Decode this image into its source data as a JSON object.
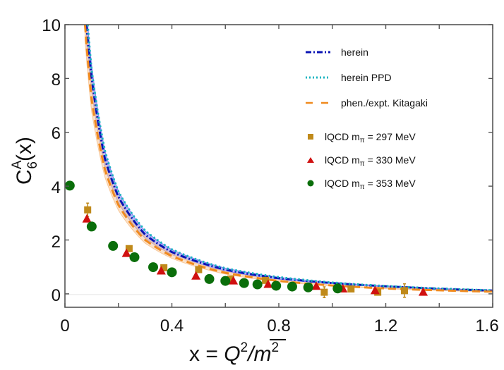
{
  "chart_data": {
    "type": "line",
    "title": "",
    "xlabel": "x = Q^2/m̄^2",
    "ylabel": "C_6^A(x)",
    "xlim": [
      0,
      1.6
    ],
    "ylim": [
      -0.5,
      10
    ],
    "xticks": [
      "0",
      "0.4",
      "0.8",
      "1.2",
      "1.6"
    ],
    "yticks": [
      "0",
      "2",
      "4",
      "6",
      "8",
      "10"
    ],
    "grid": false,
    "legend_position": "upper right",
    "series": [
      {
        "name": "herein",
        "kind": "line",
        "style": "dash-dot",
        "color": "#0a14b4",
        "band_color": "#7c7cf0",
        "formula_hint": "≈0.78/x decaying",
        "x": [
          0.08,
          0.1,
          0.15,
          0.2,
          0.3,
          0.4,
          0.6,
          0.8,
          1.0,
          1.2,
          1.4,
          1.6
        ],
        "y": [
          10.0,
          8.0,
          5.0,
          3.6,
          2.2,
          1.55,
          0.9,
          0.58,
          0.4,
          0.28,
          0.19,
          0.12
        ]
      },
      {
        "name": "herein PPD",
        "kind": "line",
        "style": "dotted",
        "color": "#18b4c0",
        "x": [
          0.085,
          0.1,
          0.15,
          0.2,
          0.3,
          0.4,
          0.6,
          0.8,
          1.0,
          1.2,
          1.4,
          1.6
        ],
        "y": [
          10.0,
          8.3,
          5.3,
          3.8,
          2.35,
          1.65,
          0.95,
          0.62,
          0.42,
          0.29,
          0.2,
          0.13
        ]
      },
      {
        "name": "phen./expt. Kitagaki",
        "kind": "line",
        "style": "dashed",
        "color": "#f08a1e",
        "band_color": "#f8c89a",
        "x": [
          0.075,
          0.1,
          0.15,
          0.2,
          0.3,
          0.4,
          0.6,
          0.8,
          1.0,
          1.2,
          1.4,
          1.6
        ],
        "y": [
          10.0,
          7.2,
          4.6,
          3.3,
          2.0,
          1.4,
          0.78,
          0.48,
          0.31,
          0.2,
          0.13,
          0.08
        ]
      },
      {
        "name": "lQCD m_π = 297 MeV",
        "kind": "scatter",
        "marker": "square",
        "color": "#c08a1a",
        "x": [
          0.085,
          0.24,
          0.37,
          0.5,
          0.62,
          0.75,
          0.97,
          1.07,
          1.17,
          1.27
        ],
        "y": [
          3.12,
          1.68,
          0.97,
          0.9,
          0.55,
          0.5,
          0.06,
          0.18,
          0.06,
          0.12
        ],
        "yerr": [
          0.25,
          0.1,
          0.1,
          0.05,
          0.05,
          0.05,
          0.2,
          0.1,
          0.1,
          0.25
        ]
      },
      {
        "name": "lQCD m_π = 330 MeV",
        "kind": "scatter",
        "marker": "triangle",
        "color": "#d01010",
        "x": [
          0.082,
          0.23,
          0.36,
          0.49,
          0.63,
          0.76,
          0.94,
          1.04,
          1.16,
          1.34
        ],
        "y": [
          2.78,
          1.5,
          0.85,
          0.66,
          0.48,
          0.35,
          0.28,
          0.18,
          0.12,
          0.06
        ]
      },
      {
        "name": "lQCD m_π = 353 MeV",
        "kind": "scatter",
        "marker": "circle",
        "color": "#0a6e0a",
        "x": [
          0.018,
          0.1,
          0.18,
          0.26,
          0.33,
          0.4,
          0.54,
          0.6,
          0.67,
          0.72,
          0.79,
          0.85,
          0.91,
          1.02
        ],
        "y": [
          4.02,
          2.5,
          1.78,
          1.36,
          0.99,
          0.8,
          0.55,
          0.48,
          0.4,
          0.35,
          0.3,
          0.27,
          0.24,
          0.2
        ],
        "yerr": [
          0.15,
          0,
          0,
          0,
          0,
          0,
          0,
          0,
          0,
          0,
          0,
          0,
          0,
          0
        ]
      }
    ]
  },
  "axes": {
    "x_ticks": [
      "0",
      "0.4",
      "0.8",
      "1.2",
      "1.6"
    ],
    "y_ticks": [
      "0",
      "2",
      "4",
      "6",
      "8",
      "10"
    ],
    "xlabel_main": "x = ",
    "xlabel_Q": "Q",
    "xlabel_exp": "2",
    "xlabel_slash": "/",
    "xlabel_m": "m",
    "ylabel_C": "C",
    "ylabel_sup": "A",
    "ylabel_sub": "6",
    "ylabel_tail": "(x)"
  },
  "legend": {
    "items": [
      {
        "label": "herein"
      },
      {
        "label": "herein PPD"
      },
      {
        "label": "phen./expt. Kitagaki"
      },
      {
        "label": "lQCD m",
        "sub": "π",
        "tail": " = 297 MeV"
      },
      {
        "label": "lQCD m",
        "sub": "π",
        "tail": " = 330 MeV"
      },
      {
        "label": "lQCD m",
        "sub": "π",
        "tail": " = 353 MeV"
      }
    ]
  }
}
